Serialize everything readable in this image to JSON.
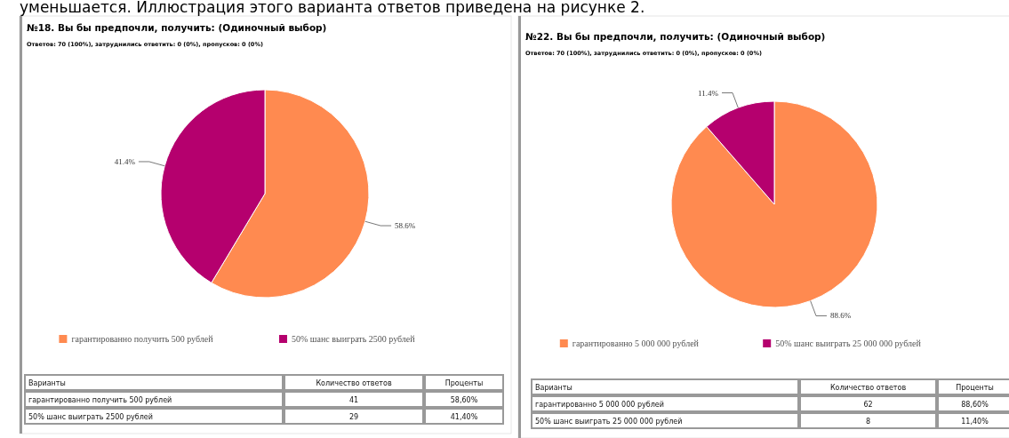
{
  "chart_data": [
    {
      "type": "pie",
      "title": "№18. Вы бы предпочли, получить: (Одиночный выбор)",
      "subtitle": "Ответов: 70 (100%), затруднились ответить: 0 (0%), пропусков: 0 (0%)",
      "categories": [
        "гарантированно получить 500 рублей",
        "50% шанс выиграть 2500 рублей"
      ],
      "values": [
        58.6,
        41.4
      ],
      "value_labels": [
        "58.6%",
        "41.4%"
      ],
      "colors": [
        "#ff8a50",
        "#b5006e"
      ],
      "legend": "bottom",
      "annotations": [
        "уменьшается. Иллюстрация этого варианта ответов приведена на рисунке 2.",
        "Варианты",
        "Количество ответов",
        "Проценты",
        "гарантированно получить 500 рублей",
        "41",
        "58,60%",
        "50% шанс выиграть 2500 рублей",
        "29",
        "41,40%"
      ]
    },
    {
      "type": "pie",
      "title": "№22. Вы бы предпочли, получить: (Одиночный выбор)",
      "subtitle": "Ответов: 70 (100%), затруднились ответить: 0 (0%), пропусков: 0 (0%)",
      "categories": [
        "гарантированно 5 000 000 рублей",
        "50% шанс выиграть 25 000 000 рублей"
      ],
      "values": [
        88.6,
        11.4
      ],
      "value_labels": [
        "88.6%",
        "11.4%"
      ],
      "colors": [
        "#ff8a50",
        "#b5006e"
      ],
      "legend": "bottom",
      "annotations": [
        "Варианты",
        "Количество ответов",
        "Проценты",
        "гарантированно 5 000 000 рублей",
        "62",
        "88,60%",
        "50% шанс выиграть 25 000 000 рублей",
        "8",
        "11,40%"
      ]
    }
  ]
}
